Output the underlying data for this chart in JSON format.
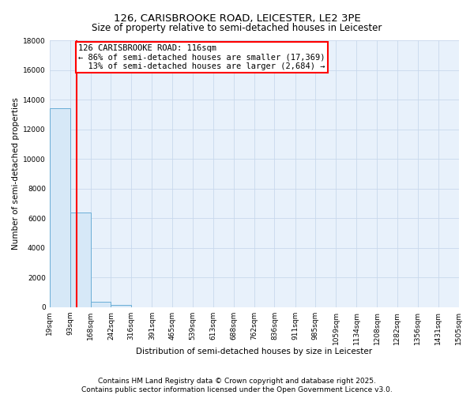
{
  "title": "126, CARISBROOKE ROAD, LEICESTER, LE2 3PE",
  "subtitle": "Size of property relative to semi-detached houses in Leicester",
  "xlabel": "Distribution of semi-detached houses by size in Leicester",
  "ylabel": "Number of semi-detached properties",
  "bin_edges": [
    19,
    93,
    168,
    242,
    316,
    391,
    465,
    539,
    613,
    688,
    762,
    836,
    911,
    985,
    1059,
    1134,
    1208,
    1282,
    1356,
    1431,
    1505
  ],
  "bin_labels": [
    "19sqm",
    "93sqm",
    "168sqm",
    "242sqm",
    "316sqm",
    "391sqm",
    "465sqm",
    "539sqm",
    "613sqm",
    "688sqm",
    "762sqm",
    "836sqm",
    "911sqm",
    "985sqm",
    "1059sqm",
    "1134sqm",
    "1208sqm",
    "1282sqm",
    "1356sqm",
    "1431sqm",
    "1505sqm"
  ],
  "bar_heights": [
    13400,
    6400,
    350,
    150,
    0,
    0,
    0,
    0,
    0,
    0,
    0,
    0,
    0,
    0,
    0,
    0,
    0,
    0,
    0,
    0
  ],
  "bar_color": "#d6e8f7",
  "bar_edge_color": "#6aaed6",
  "red_line_x": 116,
  "annotation_text": "126 CARISBROOKE ROAD: 116sqm\n← 86% of semi-detached houses are smaller (17,369)\n  13% of semi-detached houses are larger (2,684) →",
  "annotation_box_color": "white",
  "annotation_box_edge_color": "red",
  "ylim": [
    0,
    18000
  ],
  "yticks": [
    0,
    2000,
    4000,
    6000,
    8000,
    10000,
    12000,
    14000,
    16000,
    18000
  ],
  "background_color": "#e8f1fb",
  "grid_color": "#c8d8ec",
  "footer_text": "Contains HM Land Registry data © Crown copyright and database right 2025.\nContains public sector information licensed under the Open Government Licence v3.0.",
  "title_fontsize": 9.5,
  "subtitle_fontsize": 8.5,
  "axis_label_fontsize": 7.5,
  "tick_fontsize": 6.5,
  "annotation_fontsize": 7.5,
  "footer_fontsize": 6.5
}
